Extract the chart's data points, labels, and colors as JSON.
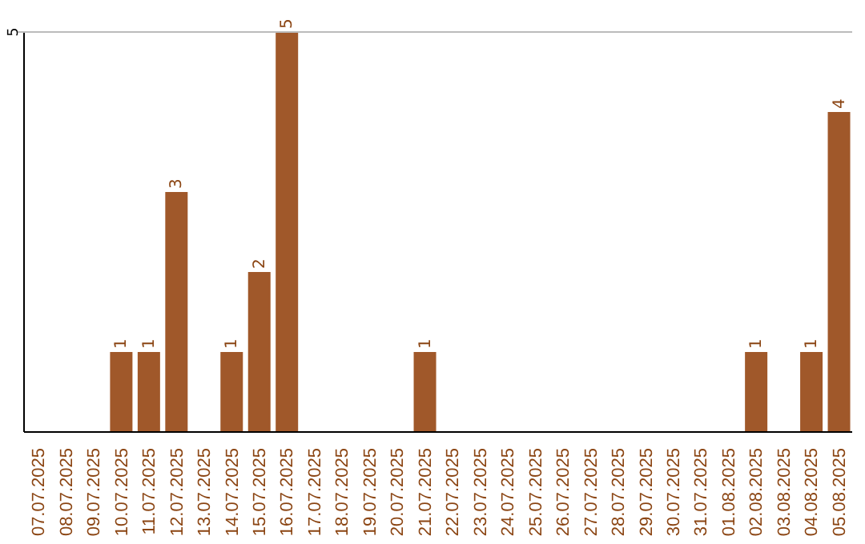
{
  "chart_data": {
    "type": "bar",
    "categories": [
      "07.07.2025",
      "08.07.2025",
      "09.07.2025",
      "10.07.2025",
      "11.07.2025",
      "12.07.2025",
      "13.07.2025",
      "14.07.2025",
      "15.07.2025",
      "16.07.2025",
      "17.07.2025",
      "18.07.2025",
      "19.07.2025",
      "20.07.2025",
      "21.07.2025",
      "22.07.2025",
      "23.07.2025",
      "24.07.2025",
      "25.07.2025",
      "26.07.2025",
      "27.07.2025",
      "28.07.2025",
      "29.07.2025",
      "30.07.2025",
      "31.07.2025",
      "01.08.2025",
      "02.08.2025",
      "03.08.2025",
      "04.08.2025",
      "05.08.2025"
    ],
    "values": [
      0,
      0,
      0,
      1,
      1,
      3,
      0,
      1,
      2,
      5,
      0,
      0,
      0,
      0,
      1,
      0,
      0,
      0,
      0,
      0,
      0,
      0,
      0,
      0,
      0,
      0,
      1,
      0,
      1,
      4
    ],
    "color": "#a0582a",
    "value_labels": [
      null,
      null,
      null,
      "1",
      "1",
      "3",
      null,
      "1",
      "2",
      "5",
      null,
      null,
      null,
      null,
      "1",
      null,
      null,
      null,
      null,
      null,
      null,
      null,
      null,
      null,
      null,
      null,
      "1",
      null,
      "1",
      "4"
    ],
    "ylim": [
      0,
      5
    ],
    "yticks": [
      5
    ]
  }
}
